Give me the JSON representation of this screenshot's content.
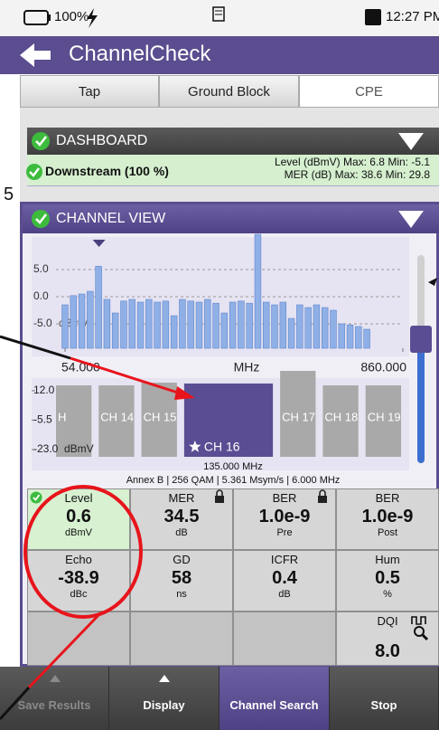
{
  "status_bar": {
    "battery": "100%",
    "time": "12:27 PM"
  },
  "header": {
    "title": "ChannelCheck"
  },
  "tabs": [
    "Tap",
    "Ground Block",
    "CPE"
  ],
  "side_text": "5",
  "dashboard": {
    "title": "DASHBOARD",
    "status": "Downstream (100 %)",
    "level": "Level (dBmV) Max: 6.8 Min: -5.1",
    "mer": "MER (dB) Max: 38.6 Min: 29.8"
  },
  "channel_view": {
    "title": "CHANNEL VIEW",
    "spectrum": {
      "type": "bar",
      "x": [
        54,
        74,
        94,
        114,
        134,
        154,
        174,
        194,
        214,
        234,
        254,
        274,
        294,
        314,
        334,
        354,
        374,
        394,
        414,
        434,
        454,
        474,
        494,
        514,
        534,
        554,
        574,
        594,
        614,
        634,
        654,
        674,
        694,
        714,
        734,
        754,
        774,
        794,
        814,
        834,
        854
      ],
      "values": [
        -1.5,
        0.2,
        0.5,
        1,
        5.6,
        -0.5,
        -3,
        -0.8,
        -0.5,
        -1,
        -0.5,
        -1,
        -0.8,
        -3.5,
        -0.5,
        -0.8,
        -1,
        -0.5,
        -1.2,
        -3,
        -1,
        -0.8,
        -1.2,
        11.5,
        -1,
        -1.5,
        -1,
        -4,
        -1.5,
        -2,
        -1.5,
        -2,
        -2.5,
        -5,
        -5.2,
        -5.5,
        -6,
        null,
        null,
        null,
        null
      ],
      "color": "#8fb0e6",
      "marker": 135,
      "xlim": [
        54,
        860
      ],
      "xticks": [
        {
          "value": 54,
          "label": "54.000"
        },
        {
          "value": 860,
          "label": "860.000"
        }
      ],
      "x_label": "MHz",
      "ylim": [
        -9.5,
        12
      ],
      "yticks": [
        {
          "value": 5,
          "label": "5.0"
        },
        {
          "value": 0,
          "label": "0.0"
        },
        {
          "value": -5,
          "label": "-5.0"
        }
      ],
      "y_unit": "dBmV",
      "grid": true
    },
    "channels": {
      "type": "bar",
      "categories": [
        "H",
        "CH 14",
        "CH 15",
        "CH 16",
        "CH 17",
        "CH 18",
        "CH 19"
      ],
      "values": [
        15.2,
        15.2,
        16.8,
        16.3,
        23.8,
        15.2,
        15.2
      ],
      "color": "#a9a9a9",
      "selected": 3,
      "selected_color": "#5a4d93",
      "ylim": [
        -27.3,
        26.5
      ],
      "yticks": [
        {
          "value": 12,
          "label": "12.0"
        },
        {
          "value": -5.5,
          "label": "-5.5"
        },
        {
          "value": -23,
          "label": "-23.0"
        }
      ],
      "y_unit": "dBmV"
    },
    "frequency": "135.000 MHz",
    "details": "Annex B | 256 QAM | 5.361 Msym/s | 6.000 MHz"
  },
  "measurements": [
    [
      {
        "label": "Level",
        "value": "0.6",
        "unit": "dBmV",
        "check": true
      },
      {
        "label": "MER",
        "value": "34.5",
        "unit": "dB",
        "lock": true
      },
      {
        "label": "BER",
        "value": "1.0e-9",
        "unit": "Pre",
        "lock": true
      },
      {
        "label": "BER",
        "value": "1.0e-9",
        "unit": "Post"
      }
    ],
    [
      {
        "label": "Echo",
        "value": "-38.9",
        "unit": "dBc"
      },
      {
        "label": "GD",
        "value": "58",
        "unit": "ns"
      },
      {
        "label": "ICFR",
        "value": "0.4",
        "unit": "dB"
      },
      {
        "label": "Hum",
        "value": "0.5",
        "unit": "%"
      }
    ],
    [
      null,
      null,
      null,
      {
        "label": "DQI",
        "value": "8.0"
      }
    ]
  ],
  "buttons": [
    "Save Results",
    "Display",
    "Channel Search",
    "Stop"
  ]
}
